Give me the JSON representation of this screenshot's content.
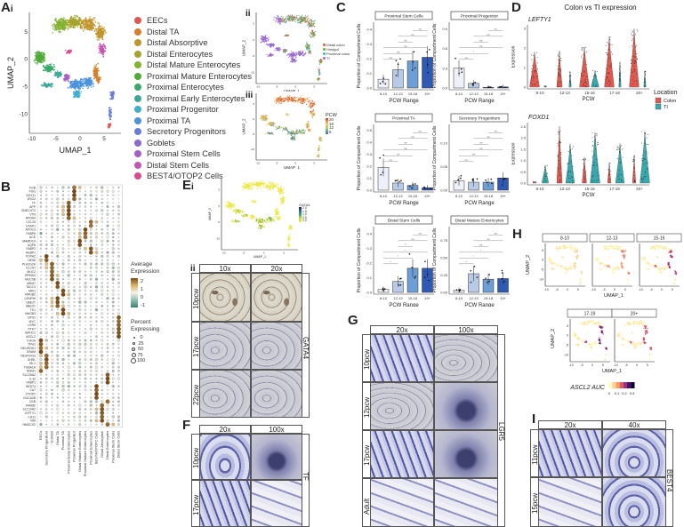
{
  "panels": {
    "A": "A",
    "A_i": "i",
    "A_ii": "ii",
    "A_iii": "iii",
    "B": "B",
    "C": "C",
    "D": "D",
    "E": "E",
    "E_i": "i",
    "E_ii": "ii",
    "F": "F",
    "G": "G",
    "H": "H",
    "I": "I"
  },
  "panel_a": {
    "xlabel": "UMAP_1",
    "ylabel": "UMAP_2",
    "xticks": [
      "-10",
      "-5",
      "0",
      "5"
    ],
    "yticks": [
      "5",
      "0",
      "-5",
      "-10"
    ],
    "clusters": [
      {
        "label": "EECs",
        "color": "#e0584d"
      },
      {
        "label": "Distal TA",
        "color": "#d67f2a"
      },
      {
        "label": "Distal Absorptive",
        "color": "#c2952c"
      },
      {
        "label": "Distal Enterocytes",
        "color": "#a4a42d"
      },
      {
        "label": "Distal Mature Enterocytes",
        "color": "#82b22f"
      },
      {
        "label": "Proximal Mature Enterocytes",
        "color": "#4fab38"
      },
      {
        "label": "Proximal Enterocytes",
        "color": "#3aa96a"
      },
      {
        "label": "Proximal Early Enterocytes",
        "color": "#3ea898"
      },
      {
        "label": "Proximal Progenitor",
        "color": "#41afcc"
      },
      {
        "label": "Proximal TA",
        "color": "#4a93df"
      },
      {
        "label": "Secretory Progenitors",
        "color": "#687fd9"
      },
      {
        "label": "Goblets",
        "color": "#8a6ad2"
      },
      {
        "label": "Proximal Stem Cells",
        "color": "#a55fc6"
      },
      {
        "label": "Distal Stem Cells",
        "color": "#c656b3"
      },
      {
        "label": "BEST4/OTOP2 Cells",
        "color": "#dc4b92"
      }
    ],
    "ii_legend": [
      {
        "label": "Distal colon",
        "color": "#e0584d"
      },
      {
        "label": "Hindgut",
        "color": "#7aa82f"
      },
      {
        "label": "Proximal colon",
        "color": "#3fb0b8"
      },
      {
        "label": "TI",
        "color": "#9a6ad6"
      }
    ],
    "iii_legend_title": "PCW",
    "iii_legend_ticks": [
      "20",
      "16",
      "12",
      "8"
    ]
  },
  "panel_b": {
    "legend_expr_title": "Average Expression",
    "legend_expr_ticks": [
      "2",
      "1",
      "0",
      "-1"
    ],
    "legend_pct_title": "Percent Expressing",
    "legend_pct_ticks": [
      "0",
      "25",
      "50",
      "75",
      "100"
    ],
    "columns": [
      "EECs",
      "Secretory Progenitors",
      "Goblets",
      "Distal TA",
      "Proximal TA",
      "Proximal Early Enterocytes",
      "Proximal Progenitor",
      "Distal Mature Enterocytes",
      "Proximal Mature Enterocytes",
      "Proximal Enterocytes",
      "BEST4/OTOP2 Cells",
      "Distal Absorptive",
      "Distal Enterocytes",
      "Proximal Stem Cells",
      "Distal Stem Cells"
    ],
    "genes": [
      [
        "FGB",
        6
      ],
      [
        "FGG",
        6
      ],
      [
        "SOX11",
        6
      ],
      [
        "DSG2",
        6
      ],
      [
        "TF",
        5
      ],
      [
        "APP",
        5
      ],
      [
        "ONECUT2",
        5
      ],
      [
        "VTN",
        5
      ],
      [
        "APOA4",
        5
      ],
      [
        "CCL25",
        9
      ],
      [
        "CASP1",
        9
      ],
      [
        "APOC3",
        8
      ],
      [
        "FABP6",
        8
      ],
      [
        "ACE",
        8
      ],
      [
        "MAMDC4",
        7
      ],
      [
        "AQP8",
        7
      ],
      [
        "FABP2",
        9
      ],
      [
        "HEBP1",
        9
      ],
      [
        "FOXA2",
        1
      ],
      [
        "HES6",
        1
      ],
      [
        "PLA2G2A",
        2
      ],
      [
        "CLCA1",
        2
      ],
      [
        "MUC2",
        2
      ],
      [
        "SPINK4",
        2
      ],
      [
        "MUC5B",
        2
      ],
      [
        "MKI67",
        3
      ],
      [
        "TACC3",
        3
      ],
      [
        "MKI1",
        4
      ],
      [
        "HMGB2",
        4
      ],
      [
        "CENPW",
        3
      ],
      [
        "UBE2T",
        3
      ],
      [
        "UBE2C",
        3
      ],
      [
        "TK1",
        4
      ],
      [
        "HMGB3",
        4
      ],
      [
        "GPX2",
        14
      ],
      [
        "MYC",
        14
      ],
      [
        "LGR5",
        14
      ],
      [
        "PTK7",
        14
      ],
      [
        "SMOC2",
        14
      ],
      [
        "ASCL2",
        14
      ],
      [
        "CHGA",
        0
      ],
      [
        "TPH1",
        0
      ],
      [
        "NEUROD1",
        0
      ],
      [
        "GRAM",
        0
      ],
      [
        "NEUROG3",
        1
      ],
      [
        "GHRL",
        1
      ],
      [
        "ISL1",
        1
      ],
      [
        "TUBA1A",
        1
      ],
      [
        "MGM1",
        0
      ],
      [
        "SLC26A2",
        12
      ],
      [
        "IL32",
        12
      ],
      [
        "FABP1",
        12
      ],
      [
        "BEST4",
        10
      ],
      [
        "CA7",
        10
      ],
      [
        "OTOP2",
        10
      ],
      [
        "GUCA2B",
        10
      ],
      [
        "CKB",
        12
      ],
      [
        "FAM3D",
        11
      ],
      [
        "SLC10A2",
        11
      ],
      [
        "LEFTY1",
        11
      ],
      [
        "CA12",
        11
      ],
      [
        "VIM",
        11
      ],
      [
        "HMGCS2",
        12
      ]
    ]
  },
  "chart_data": [
    {
      "type": "bar",
      "title": "Proximal Stem Cells",
      "categories": [
        "8-10",
        "12-13",
        "15-18",
        "19+"
      ],
      "values": [
        0.06,
        0.125,
        0.185,
        0.21
      ],
      "xlabel": "PCW Range",
      "ylabel": "Proportion of Compartment Cells",
      "ylim": [
        0,
        0.45
      ],
      "yticks": [
        "0.0",
        "0.1",
        "0.2",
        "0.3",
        "0.4"
      ],
      "significance": [
        "ns",
        "ns",
        "ns",
        "ns",
        "ns",
        "ns"
      ]
    },
    {
      "type": "bar",
      "title": "Proximal Progenitor",
      "categories": [
        "8-10",
        "12-13",
        "15-18",
        "19+"
      ],
      "values": [
        0.3,
        0.07,
        0.01,
        0.015
      ],
      "xlabel": "PCW Range",
      "ylabel": "Proportion of Compartment Cells",
      "ylim": [
        0,
        1.0
      ],
      "yticks": [
        "0.0",
        "0.3",
        "0.6",
        "0.9"
      ],
      "significance": [
        "ns",
        "*",
        "ns",
        "ns",
        "ns",
        "ns"
      ]
    },
    {
      "type": "bar",
      "title": "Proximal TA",
      "categories": [
        "8-10",
        "12-13",
        "15-18",
        "19+"
      ],
      "values": [
        0.19,
        0.06,
        0.04,
        0.02
      ],
      "xlabel": "PCW Range",
      "ylabel": "Proportion of Compartment Cells",
      "ylim": [
        0,
        0.55
      ],
      "yticks": [
        "0.0",
        "0.1",
        "0.2",
        "0.3",
        "0.4",
        "0.5"
      ],
      "significance": [
        "ns",
        "ns",
        "ns",
        "ns",
        "ns",
        "ns"
      ]
    },
    {
      "type": "bar",
      "title": "Secretory Progenitors",
      "categories": [
        "8-10",
        "12-13",
        "15-18",
        "19+"
      ],
      "values": [
        0.02,
        0.017,
        0.017,
        0.026
      ],
      "xlabel": "PCW Range",
      "ylabel": "Proportion of Compartment Cells",
      "ylim": [
        0,
        0.14
      ],
      "yticks": [
        "0.00",
        "0.05",
        "0.10"
      ],
      "significance": [
        "ns",
        "ns",
        "ns",
        "ns",
        "ns",
        "ns"
      ]
    },
    {
      "type": "bar",
      "title": "Distal Stem Cells",
      "categories": [
        "8-10",
        "12-13",
        "15-18",
        "19+"
      ],
      "values": [
        0.02,
        0.075,
        0.165,
        0.165
      ],
      "xlabel": "PCW Range",
      "ylabel": "Proportion of Compartment Cells",
      "ylim": [
        0,
        0.45
      ],
      "yticks": [
        "0.0",
        "0.1",
        "0.2",
        "0.3",
        "0.4"
      ],
      "significance": [
        "*",
        "*",
        "*",
        "**",
        "ns",
        "ns"
      ]
    },
    {
      "type": "bar",
      "title": "Distal Mature Enterocytes",
      "categories": [
        "8-10",
        "12-13",
        "15-18",
        "19+"
      ],
      "values": [
        0.03,
        0.27,
        0.19,
        0.2
      ],
      "xlabel": "PCW Range",
      "ylabel": "Proportion of Compartment Cells",
      "ylim": [
        0,
        0.95
      ],
      "yticks": [
        "0.00",
        "0.25",
        "0.50",
        "0.75"
      ],
      "significance": [
        "*",
        "*",
        "*",
        "ns",
        "ns",
        "ns"
      ]
    }
  ],
  "bar_colors": [
    "#eef0fa",
    "#b7cae6",
    "#6e9ed6",
    "#2f5ab3"
  ],
  "panel_d": {
    "title": "Colon vs TI expression",
    "legend_title": "Location",
    "legend": [
      {
        "label": "Colon",
        "color": "#e05a4f"
      },
      {
        "label": "TI",
        "color": "#3aa9ad"
      }
    ],
    "xlabel": "PCW",
    "ylabel": "Expression",
    "categories": [
      "8-10",
      "12-13",
      "15-16",
      "17-19",
      "20+"
    ],
    "genes": [
      {
        "name": "LEFTY1",
        "yticks": [
          "0",
          "1",
          "2",
          "3"
        ],
        "ymax": 3.1,
        "colon_max": [
          1.8,
          1.85,
          2.05,
          2.6,
          3.0
        ],
        "ti_max": [
          0.05,
          0.8,
          0.85,
          1.3,
          0.85
        ],
        "colon_width": [
          0.9,
          0.5,
          0.9,
          0.9,
          0.9
        ],
        "ti_width": [
          0.2,
          0.2,
          0.7,
          0.2,
          0.2
        ]
      },
      {
        "name": "FOXD1",
        "yticks": [
          "0.0",
          "0.5",
          "1.0",
          "1.5",
          "2.0",
          "2.5"
        ],
        "ymax": 2.6,
        "colon_max": [
          0.05,
          2.5,
          1.15,
          0.9,
          1.25
        ],
        "ti_max": [
          0.8,
          1.75,
          2.25,
          1.75,
          2.3
        ],
        "colon_width": [
          0.3,
          0.5,
          0.4,
          0.3,
          0.3
        ],
        "ti_width": [
          0.6,
          0.8,
          0.9,
          0.8,
          0.9
        ]
      }
    ]
  },
  "panel_e": {
    "legend_title": "GATA4",
    "legend_ticks": [
      "2.0",
      "1.5",
      "1.0",
      "0.5",
      "0.0"
    ],
    "xlabel": "UMAP_1",
    "ylabel": "UMAP_2",
    "magnifications": [
      "10x",
      "20x"
    ],
    "rows": [
      "10pcw",
      "17pcw",
      "22pcw"
    ],
    "stain": "GATA4"
  },
  "panel_f": {
    "magnifications": [
      "20x",
      "100x"
    ],
    "rows": [
      "10pcw",
      "17pcw"
    ],
    "stain": "TF"
  },
  "panel_g": {
    "magnifications": [
      "20x",
      "100x"
    ],
    "rows": [
      "10pcw",
      "12pcw",
      "17pcw",
      "Adult"
    ],
    "stain": "LGR5"
  },
  "panel_h": {
    "facets": [
      "8-10",
      "12-13",
      "15-16",
      "17-19",
      "20+"
    ],
    "xlabel": "UMAP_1",
    "ylabel": "UMAP_2",
    "xticks": [
      "-10",
      "-5",
      "0",
      "5"
    ],
    "yticks": [
      "5",
      "0",
      "-5",
      "-10"
    ],
    "legend_title": "ASCL2 AUC",
    "legend_ticks": [
      "0",
      "0.1",
      "0.2",
      "0.3"
    ]
  },
  "panel_i": {
    "magnifications": [
      "20x",
      "40x"
    ],
    "rows": [
      "11pcw",
      "15pcw"
    ],
    "stain": "BEST4"
  }
}
